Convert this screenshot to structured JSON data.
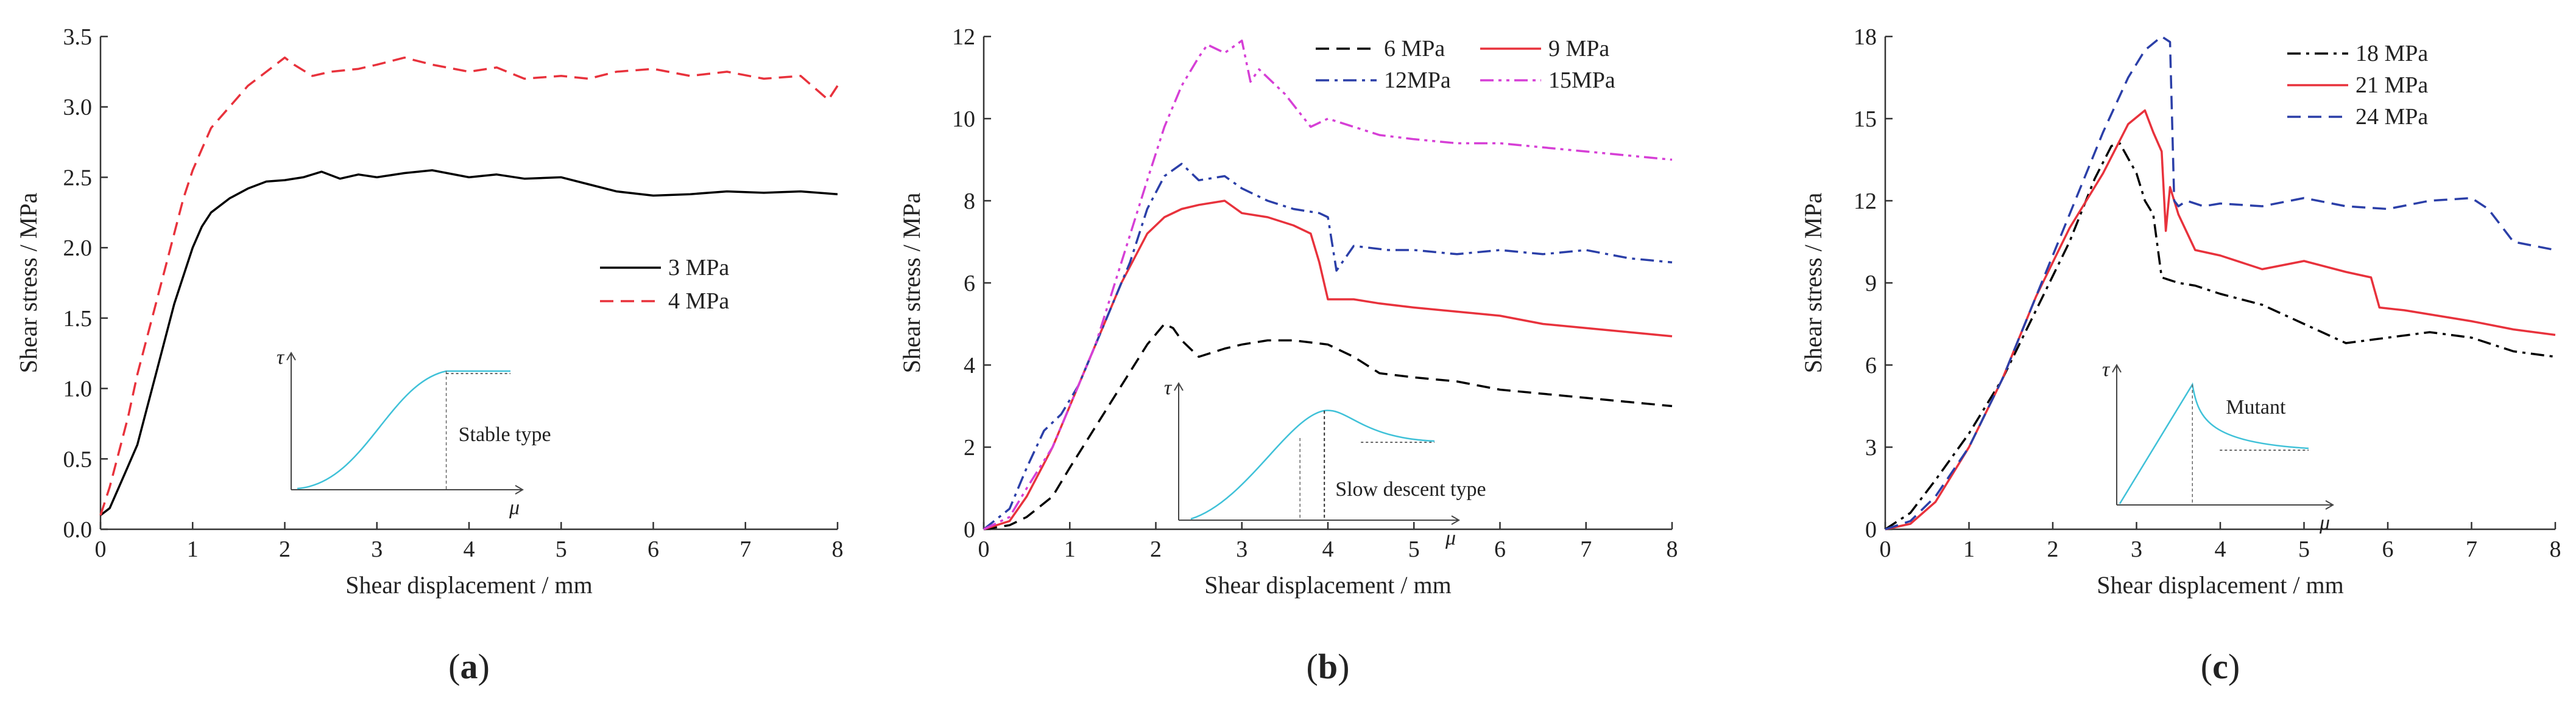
{
  "chart_data": [
    {
      "type": "line",
      "panel_label": "a",
      "xlabel": "Shear displacement / mm",
      "ylabel": "Shear stress / MPa",
      "xlim": [
        0,
        8
      ],
      "ylim": [
        0,
        3.5
      ],
      "xticks": [
        "0",
        "1",
        "2",
        "3",
        "4",
        "5",
        "6",
        "7",
        "8"
      ],
      "yticks": [
        "0.0",
        "0.5",
        "1.0",
        "1.5",
        "2.0",
        "2.5",
        "3.0",
        "3.5"
      ],
      "legend_position": "middle-right",
      "inset": {
        "label": "Stable type",
        "tau_symbol": "τ",
        "mu_symbol": "μ"
      },
      "series": [
        {
          "name": "3 MPa",
          "color": "#000000",
          "dash": "solid",
          "x": [
            0,
            0.1,
            0.2,
            0.3,
            0.4,
            0.5,
            0.6,
            0.7,
            0.8,
            0.9,
            1.0,
            1.1,
            1.2,
            1.4,
            1.6,
            1.8,
            2.0,
            2.2,
            2.4,
            2.6,
            2.8,
            3.0,
            3.3,
            3.6,
            4.0,
            4.3,
            4.6,
            5.0,
            5.3,
            5.6,
            6.0,
            6.4,
            6.8,
            7.2,
            7.6,
            8.0
          ],
          "y": [
            0.1,
            0.15,
            0.3,
            0.45,
            0.6,
            0.85,
            1.1,
            1.35,
            1.6,
            1.8,
            2.0,
            2.15,
            2.25,
            2.35,
            2.42,
            2.47,
            2.48,
            2.5,
            2.54,
            2.49,
            2.52,
            2.5,
            2.53,
            2.55,
            2.5,
            2.52,
            2.49,
            2.5,
            2.45,
            2.4,
            2.37,
            2.38,
            2.4,
            2.39,
            2.4,
            2.38
          ]
        },
        {
          "name": "4 MPa",
          "color": "#e8323c",
          "dash": "dashed",
          "x": [
            0,
            0.1,
            0.2,
            0.3,
            0.4,
            0.5,
            0.6,
            0.7,
            0.8,
            0.9,
            1.0,
            1.1,
            1.2,
            1.4,
            1.6,
            1.8,
            2.0,
            2.1,
            2.3,
            2.5,
            2.8,
            3.0,
            3.3,
            3.6,
            4.0,
            4.3,
            4.6,
            5.0,
            5.3,
            5.6,
            6.0,
            6.4,
            6.8,
            7.2,
            7.6,
            7.9,
            8.0
          ],
          "y": [
            0.1,
            0.3,
            0.55,
            0.8,
            1.1,
            1.35,
            1.6,
            1.85,
            2.1,
            2.35,
            2.55,
            2.7,
            2.85,
            3.0,
            3.15,
            3.25,
            3.35,
            3.3,
            3.22,
            3.25,
            3.27,
            3.3,
            3.35,
            3.3,
            3.25,
            3.28,
            3.2,
            3.22,
            3.2,
            3.25,
            3.27,
            3.22,
            3.25,
            3.2,
            3.22,
            3.05,
            3.15
          ]
        }
      ]
    },
    {
      "type": "line",
      "panel_label": "b",
      "xlabel": "Shear displacement / mm",
      "ylabel": "Shear stress / MPa",
      "xlim": [
        0,
        8
      ],
      "ylim": [
        0,
        12
      ],
      "xticks": [
        "0",
        "1",
        "2",
        "3",
        "4",
        "5",
        "6",
        "7",
        "8"
      ],
      "yticks": [
        "0",
        "2",
        "4",
        "6",
        "8",
        "10",
        "12"
      ],
      "legend_position": "top-right",
      "inset": {
        "label": "Slow descent type",
        "tau_symbol": "τ",
        "mu_symbol": "μ"
      },
      "series": [
        {
          "name": "6 MPa",
          "color": "#000000",
          "dash": "dashed",
          "x": [
            0,
            0.3,
            0.5,
            0.8,
            1.0,
            1.3,
            1.6,
            1.9,
            2.1,
            2.2,
            2.3,
            2.5,
            2.8,
            3.0,
            3.3,
            3.6,
            4.0,
            4.3,
            4.6,
            5.0,
            5.5,
            6.0,
            6.5,
            7.0,
            7.5,
            8.0
          ],
          "y": [
            0,
            0.1,
            0.3,
            0.8,
            1.5,
            2.5,
            3.5,
            4.5,
            5.0,
            4.9,
            4.6,
            4.2,
            4.4,
            4.5,
            4.6,
            4.6,
            4.5,
            4.2,
            3.8,
            3.7,
            3.6,
            3.4,
            3.3,
            3.2,
            3.1,
            3.0
          ]
        },
        {
          "name": "9 MPa",
          "color": "#e8323c",
          "dash": "solid",
          "x": [
            0,
            0.3,
            0.5,
            0.8,
            1.0,
            1.3,
            1.6,
            1.9,
            2.1,
            2.3,
            2.5,
            2.8,
            3.0,
            3.3,
            3.6,
            3.8,
            3.9,
            4.0,
            4.3,
            4.6,
            5.0,
            5.5,
            6.0,
            6.5,
            7.0,
            7.5,
            8.0
          ],
          "y": [
            0,
            0.2,
            0.8,
            2.0,
            3.0,
            4.5,
            6.0,
            7.2,
            7.6,
            7.8,
            7.9,
            8.0,
            7.7,
            7.6,
            7.4,
            7.2,
            6.5,
            5.6,
            5.6,
            5.5,
            5.4,
            5.3,
            5.2,
            5.0,
            4.9,
            4.8,
            4.7
          ]
        },
        {
          "name": "12MPa",
          "color": "#2b3fa8",
          "dash": "dashdot",
          "x": [
            0,
            0.3,
            0.5,
            0.7,
            0.9,
            1.1,
            1.4,
            1.7,
            1.9,
            2.1,
            2.3,
            2.5,
            2.8,
            3.0,
            3.3,
            3.6,
            3.9,
            4.0,
            4.1,
            4.3,
            4.7,
            5.0,
            5.5,
            6.0,
            6.5,
            7.0,
            7.5,
            8.0
          ],
          "y": [
            0,
            0.5,
            1.5,
            2.4,
            2.8,
            3.5,
            5.0,
            6.5,
            7.8,
            8.6,
            8.9,
            8.5,
            8.6,
            8.3,
            8.0,
            7.8,
            7.7,
            7.6,
            6.3,
            6.9,
            6.8,
            6.8,
            6.7,
            6.8,
            6.7,
            6.8,
            6.6,
            6.5
          ]
        },
        {
          "name": "15MPa",
          "color": "#d63fd6",
          "dash": "dashdotdot",
          "x": [
            0,
            0.3,
            0.5,
            0.8,
            1.0,
            1.3,
            1.6,
            1.9,
            2.1,
            2.3,
            2.5,
            2.6,
            2.8,
            3.0,
            3.1,
            3.2,
            3.5,
            3.8,
            4.0,
            4.3,
            4.6,
            5.0,
            5.5,
            6.0,
            6.5,
            7.0,
            7.5,
            8.0
          ],
          "y": [
            0,
            0.3,
            1.0,
            2.0,
            3.0,
            4.5,
            6.5,
            8.5,
            9.8,
            10.8,
            11.5,
            11.8,
            11.6,
            11.9,
            10.9,
            11.2,
            10.6,
            9.8,
            10.0,
            9.8,
            9.6,
            9.5,
            9.4,
            9.4,
            9.3,
            9.2,
            9.1,
            9.0
          ]
        }
      ]
    },
    {
      "type": "line",
      "panel_label": "c",
      "xlabel": "Shear displacement / mm",
      "ylabel": "Shear stress / MPa",
      "xlim": [
        0,
        8
      ],
      "ylim": [
        0,
        18
      ],
      "xticks": [
        "0",
        "1",
        "2",
        "3",
        "4",
        "5",
        "6",
        "7",
        "8"
      ],
      "yticks": [
        "0",
        "3",
        "6",
        "9",
        "12",
        "15",
        "18"
      ],
      "legend_position": "top-right",
      "inset": {
        "label": "Mutant",
        "tau_symbol": "τ",
        "mu_symbol": "μ"
      },
      "series": [
        {
          "name": "18 MPa",
          "color": "#000000",
          "dash": "dashdot",
          "x": [
            0,
            0.3,
            0.6,
            1.0,
            1.4,
            1.8,
            2.2,
            2.5,
            2.7,
            2.8,
            3.0,
            3.1,
            3.2,
            3.3,
            3.5,
            3.7,
            4.0,
            4.5,
            5.0,
            5.5,
            6.0,
            6.5,
            7.0,
            7.5,
            8.0
          ],
          "y": [
            0,
            0.6,
            1.8,
            3.5,
            5.5,
            8.0,
            10.5,
            12.8,
            14.0,
            14.1,
            13.0,
            12.0,
            11.5,
            9.2,
            9.0,
            8.9,
            8.6,
            8.2,
            7.5,
            6.8,
            7.0,
            7.2,
            7.0,
            6.5,
            6.3
          ]
        },
        {
          "name": "21 MPa",
          "color": "#e8323c",
          "dash": "solid",
          "x": [
            0,
            0.3,
            0.6,
            1.0,
            1.4,
            1.8,
            2.2,
            2.6,
            2.9,
            3.1,
            3.2,
            3.3,
            3.35,
            3.4,
            3.5,
            3.7,
            4.0,
            4.5,
            5.0,
            5.5,
            5.8,
            5.9,
            6.2,
            6.6,
            7.0,
            7.5,
            8.0
          ],
          "y": [
            0,
            0.2,
            1.0,
            3.0,
            5.5,
            8.5,
            11.0,
            13.0,
            14.8,
            15.3,
            14.5,
            13.8,
            10.9,
            12.5,
            11.5,
            10.2,
            10.0,
            9.5,
            9.8,
            9.4,
            9.2,
            8.1,
            8.0,
            7.8,
            7.6,
            7.3,
            7.1
          ]
        },
        {
          "name": "24 MPa",
          "color": "#2b3fa8",
          "dash": "dashed",
          "x": [
            0,
            0.3,
            0.6,
            1.0,
            1.4,
            1.8,
            2.2,
            2.6,
            2.9,
            3.1,
            3.3,
            3.4,
            3.45,
            3.5,
            3.6,
            3.8,
            4.0,
            4.5,
            5.0,
            5.5,
            6.0,
            6.5,
            7.0,
            7.2,
            7.5,
            8.0
          ],
          "y": [
            0,
            0.3,
            1.2,
            3.0,
            5.5,
            8.5,
            11.5,
            14.5,
            16.5,
            17.5,
            18.0,
            17.8,
            12.0,
            11.8,
            12.0,
            11.8,
            11.9,
            11.8,
            12.1,
            11.8,
            11.7,
            12.0,
            12.1,
            11.7,
            10.5,
            10.2
          ]
        }
      ]
    }
  ]
}
